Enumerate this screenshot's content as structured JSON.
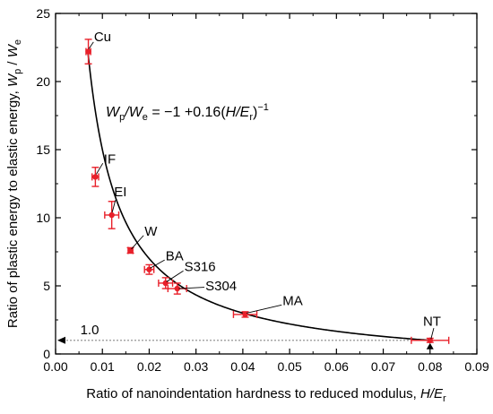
{
  "chart_data": {
    "type": "scatter",
    "xlabel": "Ratio of nanoindentation hardness to reduced modulus, H/E",
    "xlabel_parts": {
      "text": "Ratio of nanoindentation hardness to reduced modulus, ",
      "var_main": "H/E",
      "var_sub": "r"
    },
    "ylabel": "Ratio of plastic energy to elastic energy, Wp / We",
    "ylabel_parts": {
      "text": "Ratio of plastic energy to elastic energy, ",
      "w1": "W",
      "s1": "p",
      "slash": " / ",
      "w2": "W",
      "s2": "e"
    },
    "xlim": [
      0.0,
      0.09
    ],
    "ylim": [
      0,
      25
    ],
    "xticks": [
      0.0,
      0.01,
      0.02,
      0.03,
      0.04,
      0.05,
      0.06,
      0.07,
      0.08,
      0.09
    ],
    "xtick_labels": [
      "0.00",
      "0.01",
      "0.02",
      "0.03",
      "0.04",
      "0.05",
      "0.06",
      "0.07",
      "0.08",
      "0.09"
    ],
    "yticks": [
      0,
      5,
      10,
      15,
      20,
      25
    ],
    "ytick_labels": [
      "0",
      "5",
      "10",
      "15",
      "20",
      "25"
    ],
    "points": [
      {
        "label": "Cu",
        "x": 0.007,
        "y": 22.2,
        "xerr": 0.0005,
        "yerr": 0.9
      },
      {
        "label": "IF",
        "x": 0.0085,
        "y": 13.0,
        "xerr": 0.0007,
        "yerr": 0.7
      },
      {
        "label": "EI",
        "x": 0.012,
        "y": 10.2,
        "xerr": 0.0015,
        "yerr": 1.0
      },
      {
        "label": "W",
        "x": 0.016,
        "y": 7.6,
        "xerr": 0.0005,
        "yerr": 0.2
      },
      {
        "label": "BA",
        "x": 0.02,
        "y": 6.2,
        "xerr": 0.001,
        "yerr": 0.35
      },
      {
        "label": "S316",
        "x": 0.0235,
        "y": 5.2,
        "xerr": 0.0015,
        "yerr": 0.4
      },
      {
        "label": "S304",
        "x": 0.026,
        "y": 4.8,
        "xerr": 0.002,
        "yerr": 0.4
      },
      {
        "label": "MA",
        "x": 0.0405,
        "y": 2.9,
        "xerr": 0.0025,
        "yerr": 0.2
      },
      {
        "label": "NT",
        "x": 0.08,
        "y": 1.0,
        "xerr": 0.004,
        "yerr": 0.15
      }
    ],
    "fit": {
      "a": -1,
      "b": 0.16,
      "x_start": 0.0069,
      "x_end": 0.0805,
      "equation_parts": [
        "W",
        "p",
        "/",
        "W",
        "e",
        " = −1 +0.16(",
        "H/E",
        "r",
        ")",
        "−1"
      ]
    },
    "reference_line": {
      "y": 1.0,
      "label": "1.0",
      "style": "dotted"
    },
    "colors": {
      "points": "#e8202a",
      "curve": "#000000",
      "reference": "#888888"
    },
    "grid": false,
    "legend": "none"
  }
}
